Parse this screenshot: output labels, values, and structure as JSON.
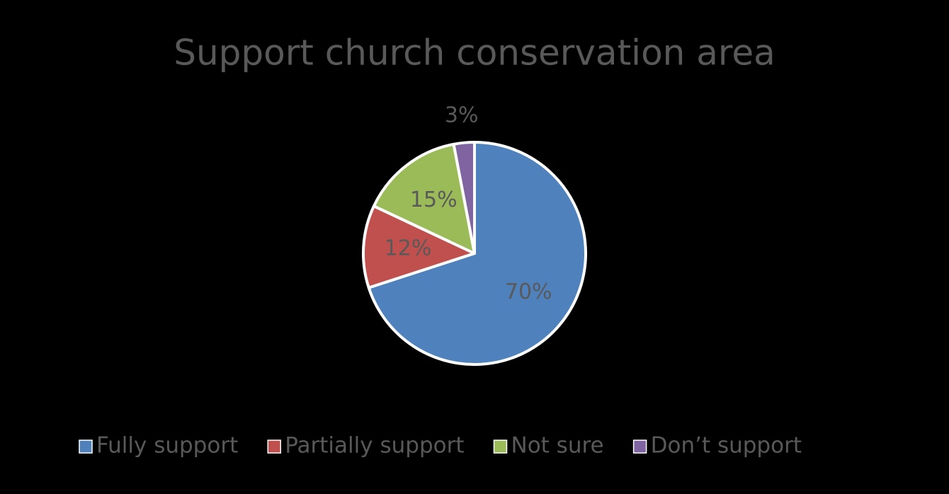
{
  "chart_data": {
    "type": "pie",
    "title": "Support church conservation area",
    "categories": [
      "Fully support",
      "Partially support",
      "Not sure",
      "Don’t support"
    ],
    "values": [
      70,
      12,
      15,
      3
    ],
    "value_labels": [
      "70%",
      "12%",
      "15%",
      "3%"
    ],
    "colors": [
      "#4f81bd",
      "#c0504d",
      "#9bbb59",
      "#8064a2"
    ],
    "legend": "bottom"
  }
}
